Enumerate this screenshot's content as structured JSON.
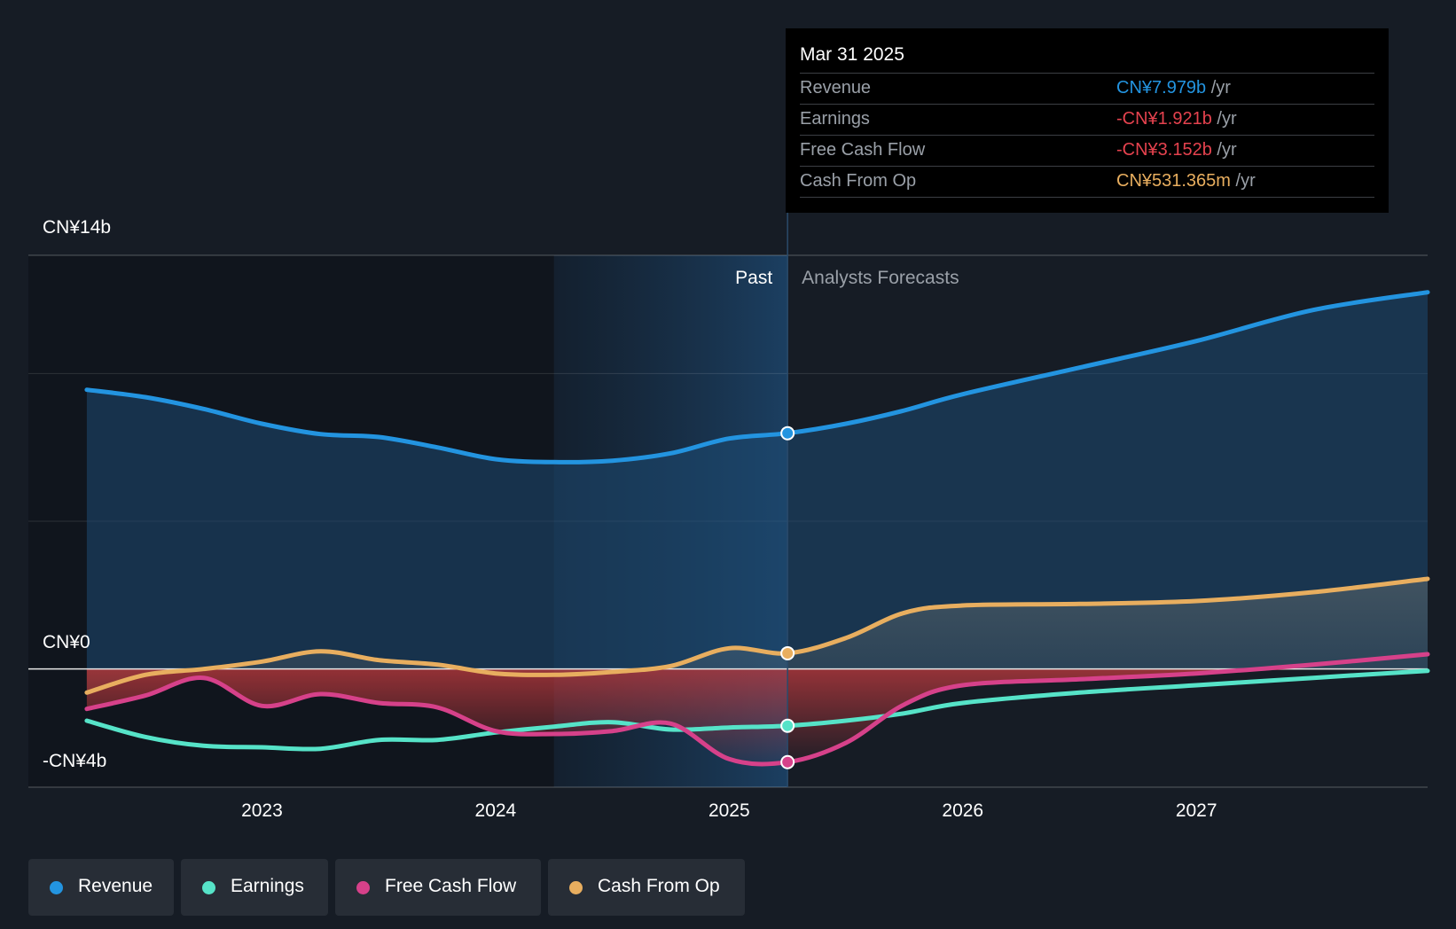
{
  "chart_data": {
    "type": "line",
    "title": "",
    "xlabel": "",
    "ylabel": "",
    "ylim": [
      -4,
      14
    ],
    "y_tick_labels": [
      "CN¥14b",
      "CN¥0",
      "-CN¥4b"
    ],
    "y_ticks": [
      14,
      0,
      -4
    ],
    "x_tick_labels": [
      "2023",
      "2024",
      "2025",
      "2026",
      "2027"
    ],
    "x_ticks": [
      2023.0,
      2024.0,
      2025.0,
      2026.0,
      2027.0
    ],
    "xlim": [
      2022.0,
      2027.99
    ],
    "past_label": "Past",
    "forecast_label": "Analysts Forecasts",
    "divider_x": 2025.25,
    "past_highlight_start": 2024.25,
    "series": [
      {
        "name": "Revenue",
        "color": "#2394e0",
        "x": [
          2022.25,
          2022.5,
          2022.75,
          2023.0,
          2023.25,
          2023.5,
          2023.75,
          2024.0,
          2024.25,
          2024.5,
          2024.75,
          2025.0,
          2025.25,
          2025.5,
          2025.75,
          2026.0,
          2026.5,
          2027.0,
          2027.5,
          2027.99
        ],
        "values": [
          9.45,
          9.2,
          8.8,
          8.3,
          7.95,
          7.85,
          7.5,
          7.1,
          7.0,
          7.05,
          7.3,
          7.8,
          7.979,
          8.3,
          8.75,
          9.3,
          10.2,
          11.1,
          12.15,
          12.75
        ]
      },
      {
        "name": "Earnings",
        "color": "#56e3c8",
        "x": [
          2022.25,
          2022.5,
          2022.75,
          2023.0,
          2023.25,
          2023.5,
          2023.75,
          2024.0,
          2024.25,
          2024.5,
          2024.75,
          2025.0,
          2025.25,
          2025.5,
          2025.75,
          2026.0,
          2026.5,
          2027.0,
          2027.5,
          2027.99
        ],
        "values": [
          -1.75,
          -2.3,
          -2.6,
          -2.65,
          -2.7,
          -2.4,
          -2.4,
          -2.15,
          -1.95,
          -1.8,
          -2.05,
          -1.98,
          -1.921,
          -1.75,
          -1.5,
          -1.15,
          -0.8,
          -0.55,
          -0.3,
          -0.06
        ]
      },
      {
        "name": "Free Cash Flow",
        "color": "#d6418a",
        "x": [
          2022.25,
          2022.5,
          2022.75,
          2023.0,
          2023.25,
          2023.5,
          2023.75,
          2024.0,
          2024.25,
          2024.5,
          2024.75,
          2025.0,
          2025.25,
          2025.5,
          2025.75,
          2026.0,
          2026.5,
          2027.0,
          2027.5,
          2027.99
        ],
        "values": [
          -1.35,
          -0.9,
          -0.3,
          -1.25,
          -0.85,
          -1.15,
          -1.3,
          -2.1,
          -2.2,
          -2.1,
          -1.85,
          -3.05,
          -3.152,
          -2.5,
          -1.2,
          -0.55,
          -0.35,
          -0.15,
          0.15,
          0.5
        ]
      },
      {
        "name": "Cash From Op",
        "color": "#e8ae5f",
        "x": [
          2022.25,
          2022.5,
          2022.75,
          2023.0,
          2023.25,
          2023.5,
          2023.75,
          2024.0,
          2024.25,
          2024.5,
          2024.75,
          2025.0,
          2025.25,
          2025.5,
          2025.75,
          2026.0,
          2026.5,
          2027.0,
          2027.5,
          2027.99
        ],
        "values": [
          -0.8,
          -0.2,
          0.0,
          0.25,
          0.6,
          0.3,
          0.15,
          -0.15,
          -0.2,
          -0.1,
          0.1,
          0.7,
          0.531,
          1.05,
          1.9,
          2.15,
          2.2,
          2.3,
          2.6,
          3.05
        ]
      }
    ],
    "highlight_x": 2025.25
  },
  "tooltip": {
    "date": "Mar 31 2025",
    "rows": [
      {
        "label": "Revenue",
        "value": "CN¥7.979b",
        "unit": "/yr",
        "color": "#2394e0"
      },
      {
        "label": "Earnings",
        "value": "-CN¥1.921b",
        "unit": "/yr",
        "color": "#e5424e"
      },
      {
        "label": "Free Cash Flow",
        "value": "-CN¥3.152b",
        "unit": "/yr",
        "color": "#e5424e"
      },
      {
        "label": "Cash From Op",
        "value": "CN¥531.365m",
        "unit": "/yr",
        "color": "#e8ae5f"
      }
    ]
  },
  "legend": [
    {
      "label": "Revenue",
      "color": "#2394e0"
    },
    {
      "label": "Earnings",
      "color": "#56e3c8"
    },
    {
      "label": "Free Cash Flow",
      "color": "#d6418a"
    },
    {
      "label": "Cash From Op",
      "color": "#e8ae5f"
    }
  ]
}
